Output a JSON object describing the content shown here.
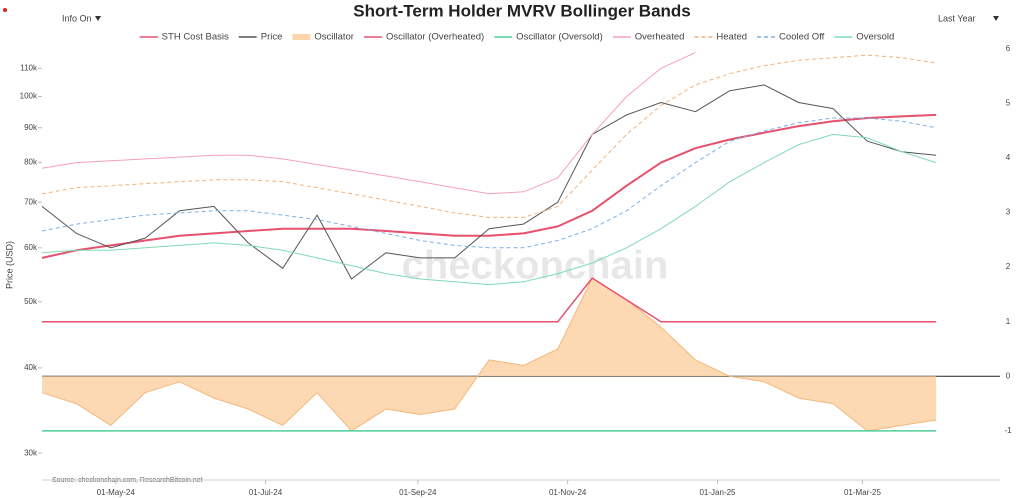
{
  "chart_data": {
    "type": "line",
    "title": "Short-Term Holder MVRV Bollinger Bands",
    "controls": {
      "info": "Info On",
      "range": "Last Year"
    },
    "watermark": "checkonchain",
    "source": "Source: checkonchain.com, ResearchBitcoin.net",
    "y_label": "Price (USD)",
    "log_y": true,
    "x": [
      "2024-04-01",
      "2024-04-15",
      "2024-04-29",
      "2024-05-13",
      "2024-05-27",
      "2024-06-10",
      "2024-06-24",
      "2024-07-08",
      "2024-07-22",
      "2024-08-05",
      "2024-08-19",
      "2024-09-02",
      "2024-09-16",
      "2024-09-30",
      "2024-10-14",
      "2024-10-28",
      "2024-11-11",
      "2024-11-25",
      "2024-12-09",
      "2024-12-23",
      "2025-01-06",
      "2025-01-20",
      "2025-02-03",
      "2025-02-17",
      "2025-03-03",
      "2025-03-17",
      "2025-03-31"
    ],
    "xlim": [
      "2024-04-01",
      "2025-04-26"
    ],
    "xticks": [
      {
        "value": "2024-05-01",
        "label": "01-May-24"
      },
      {
        "value": "2024-07-01",
        "label": "01-Jul-24"
      },
      {
        "value": "2024-09-01",
        "label": "01-Sep-24"
      },
      {
        "value": "2024-11-01",
        "label": "01-Nov-24"
      },
      {
        "value": "2025-01-01",
        "label": "01-Jan-25"
      },
      {
        "value": "2025-03-01",
        "label": "01-Mar-25"
      }
    ],
    "ylim": [
      27400,
      119000
    ],
    "yticks": [
      {
        "value": 30000,
        "label": "30k"
      },
      {
        "value": 40000,
        "label": "40k"
      },
      {
        "value": 50000,
        "label": "50k"
      },
      {
        "value": 60000,
        "label": "60k"
      },
      {
        "value": 70000,
        "label": "70k"
      },
      {
        "value": 80000,
        "label": "80k"
      },
      {
        "value": 90000,
        "label": "90k"
      },
      {
        "value": 100000,
        "label": "100k"
      },
      {
        "value": 110000,
        "label": "110k"
      }
    ],
    "y2lim": [
      -1.9,
      6.07
    ],
    "y2ticks": [
      -1,
      0,
      1,
      2,
      3,
      4,
      5,
      6
    ],
    "series": [
      {
        "name": "STH Cost Basis",
        "color": "#e8506e",
        "width": 2,
        "values": [
          58000,
          59500,
          60500,
          61500,
          62500,
          63000,
          63500,
          64000,
          64000,
          64000,
          63500,
          63000,
          62500,
          62500,
          63000,
          64500,
          68000,
          74000,
          80000,
          84000,
          86500,
          88500,
          90500,
          92000,
          93000,
          93500,
          94000
        ]
      },
      {
        "name": "Price",
        "color": "#555555",
        "width": 1,
        "values": [
          69000,
          63000,
          60000,
          62000,
          68000,
          69000,
          61000,
          56000,
          67000,
          54000,
          59000,
          58000,
          58000,
          64000,
          65000,
          70000,
          88000,
          94000,
          98000,
          95000,
          102000,
          104000,
          98000,
          96000,
          86000,
          83000,
          82000
        ]
      },
      {
        "name": "Oscillator",
        "color": "#f5b77a",
        "fill": true,
        "axis": "y2",
        "values": [
          -0.3,
          -0.5,
          -0.9,
          -0.3,
          -0.1,
          -0.4,
          -0.6,
          -0.9,
          -0.3,
          -1.0,
          -0.6,
          -0.7,
          -0.6,
          0.3,
          0.2,
          0.5,
          1.8,
          1.4,
          0.9,
          0.3,
          0.0,
          -0.1,
          -0.4,
          -0.5,
          -1.0,
          -0.9,
          -0.8
        ]
      },
      {
        "name": "Oscillator (Overheated)",
        "color": "#e8506e",
        "width": 1.5,
        "axis": "y2",
        "values": [
          1,
          1,
          1,
          1,
          1,
          1,
          1,
          1,
          1,
          1,
          1,
          1,
          1,
          1,
          1,
          1,
          1.8,
          1.4,
          1,
          1,
          1,
          1,
          1,
          1,
          1,
          1,
          1
        ]
      },
      {
        "name": "Oscillator (Oversold)",
        "color": "#4fcf9a",
        "width": 1.5,
        "axis": "y2",
        "values": [
          -1,
          -1,
          -1,
          -1,
          -1,
          -1,
          -1,
          -1,
          -1,
          -1,
          -1,
          -1,
          -1,
          -1,
          -1,
          -1,
          -1,
          -1,
          -1,
          -1,
          -1,
          -1,
          -1,
          -1,
          -1,
          -1,
          -1
        ]
      },
      {
        "name": "Overheated",
        "color": "#f7a0b9",
        "width": 1,
        "values": [
          78500,
          80000,
          80500,
          81000,
          81500,
          82000,
          82000,
          81000,
          79500,
          78000,
          76500,
          75000,
          73500,
          72000,
          72500,
          76000,
          88000,
          100000,
          110000,
          116000,
          null,
          null,
          null,
          null,
          null,
          null,
          null
        ]
      },
      {
        "name": "Heated",
        "color": "#f4b27a",
        "dash": true,
        "width": 1,
        "values": [
          72000,
          73500,
          74000,
          74500,
          75000,
          75500,
          75500,
          75000,
          73500,
          72000,
          70500,
          69000,
          67500,
          66500,
          66500,
          69000,
          78000,
          88000,
          97000,
          104000,
          108000,
          111000,
          113000,
          114000,
          115000,
          114000,
          112000
        ]
      },
      {
        "name": "Cooled Off",
        "color": "#7ab0e6",
        "dash": true,
        "width": 1,
        "values": [
          63500,
          65000,
          66000,
          67000,
          67500,
          68000,
          68000,
          67000,
          66000,
          64500,
          63000,
          61500,
          60500,
          60000,
          60000,
          61500,
          64000,
          68000,
          74000,
          80000,
          86000,
          89000,
          91500,
          93000,
          93000,
          92000,
          90000
        ]
      },
      {
        "name": "Oversold",
        "color": "#7fdbb3",
        "width": 1,
        "values": [
          59000,
          59500,
          59500,
          60000,
          60500,
          61000,
          60500,
          59500,
          58000,
          56500,
          55000,
          54000,
          53500,
          53000,
          53500,
          55000,
          57000,
          60000,
          64000,
          69000,
          75000,
          80000,
          85000,
          88000,
          87000,
          83000,
          80000
        ]
      }
    ]
  }
}
